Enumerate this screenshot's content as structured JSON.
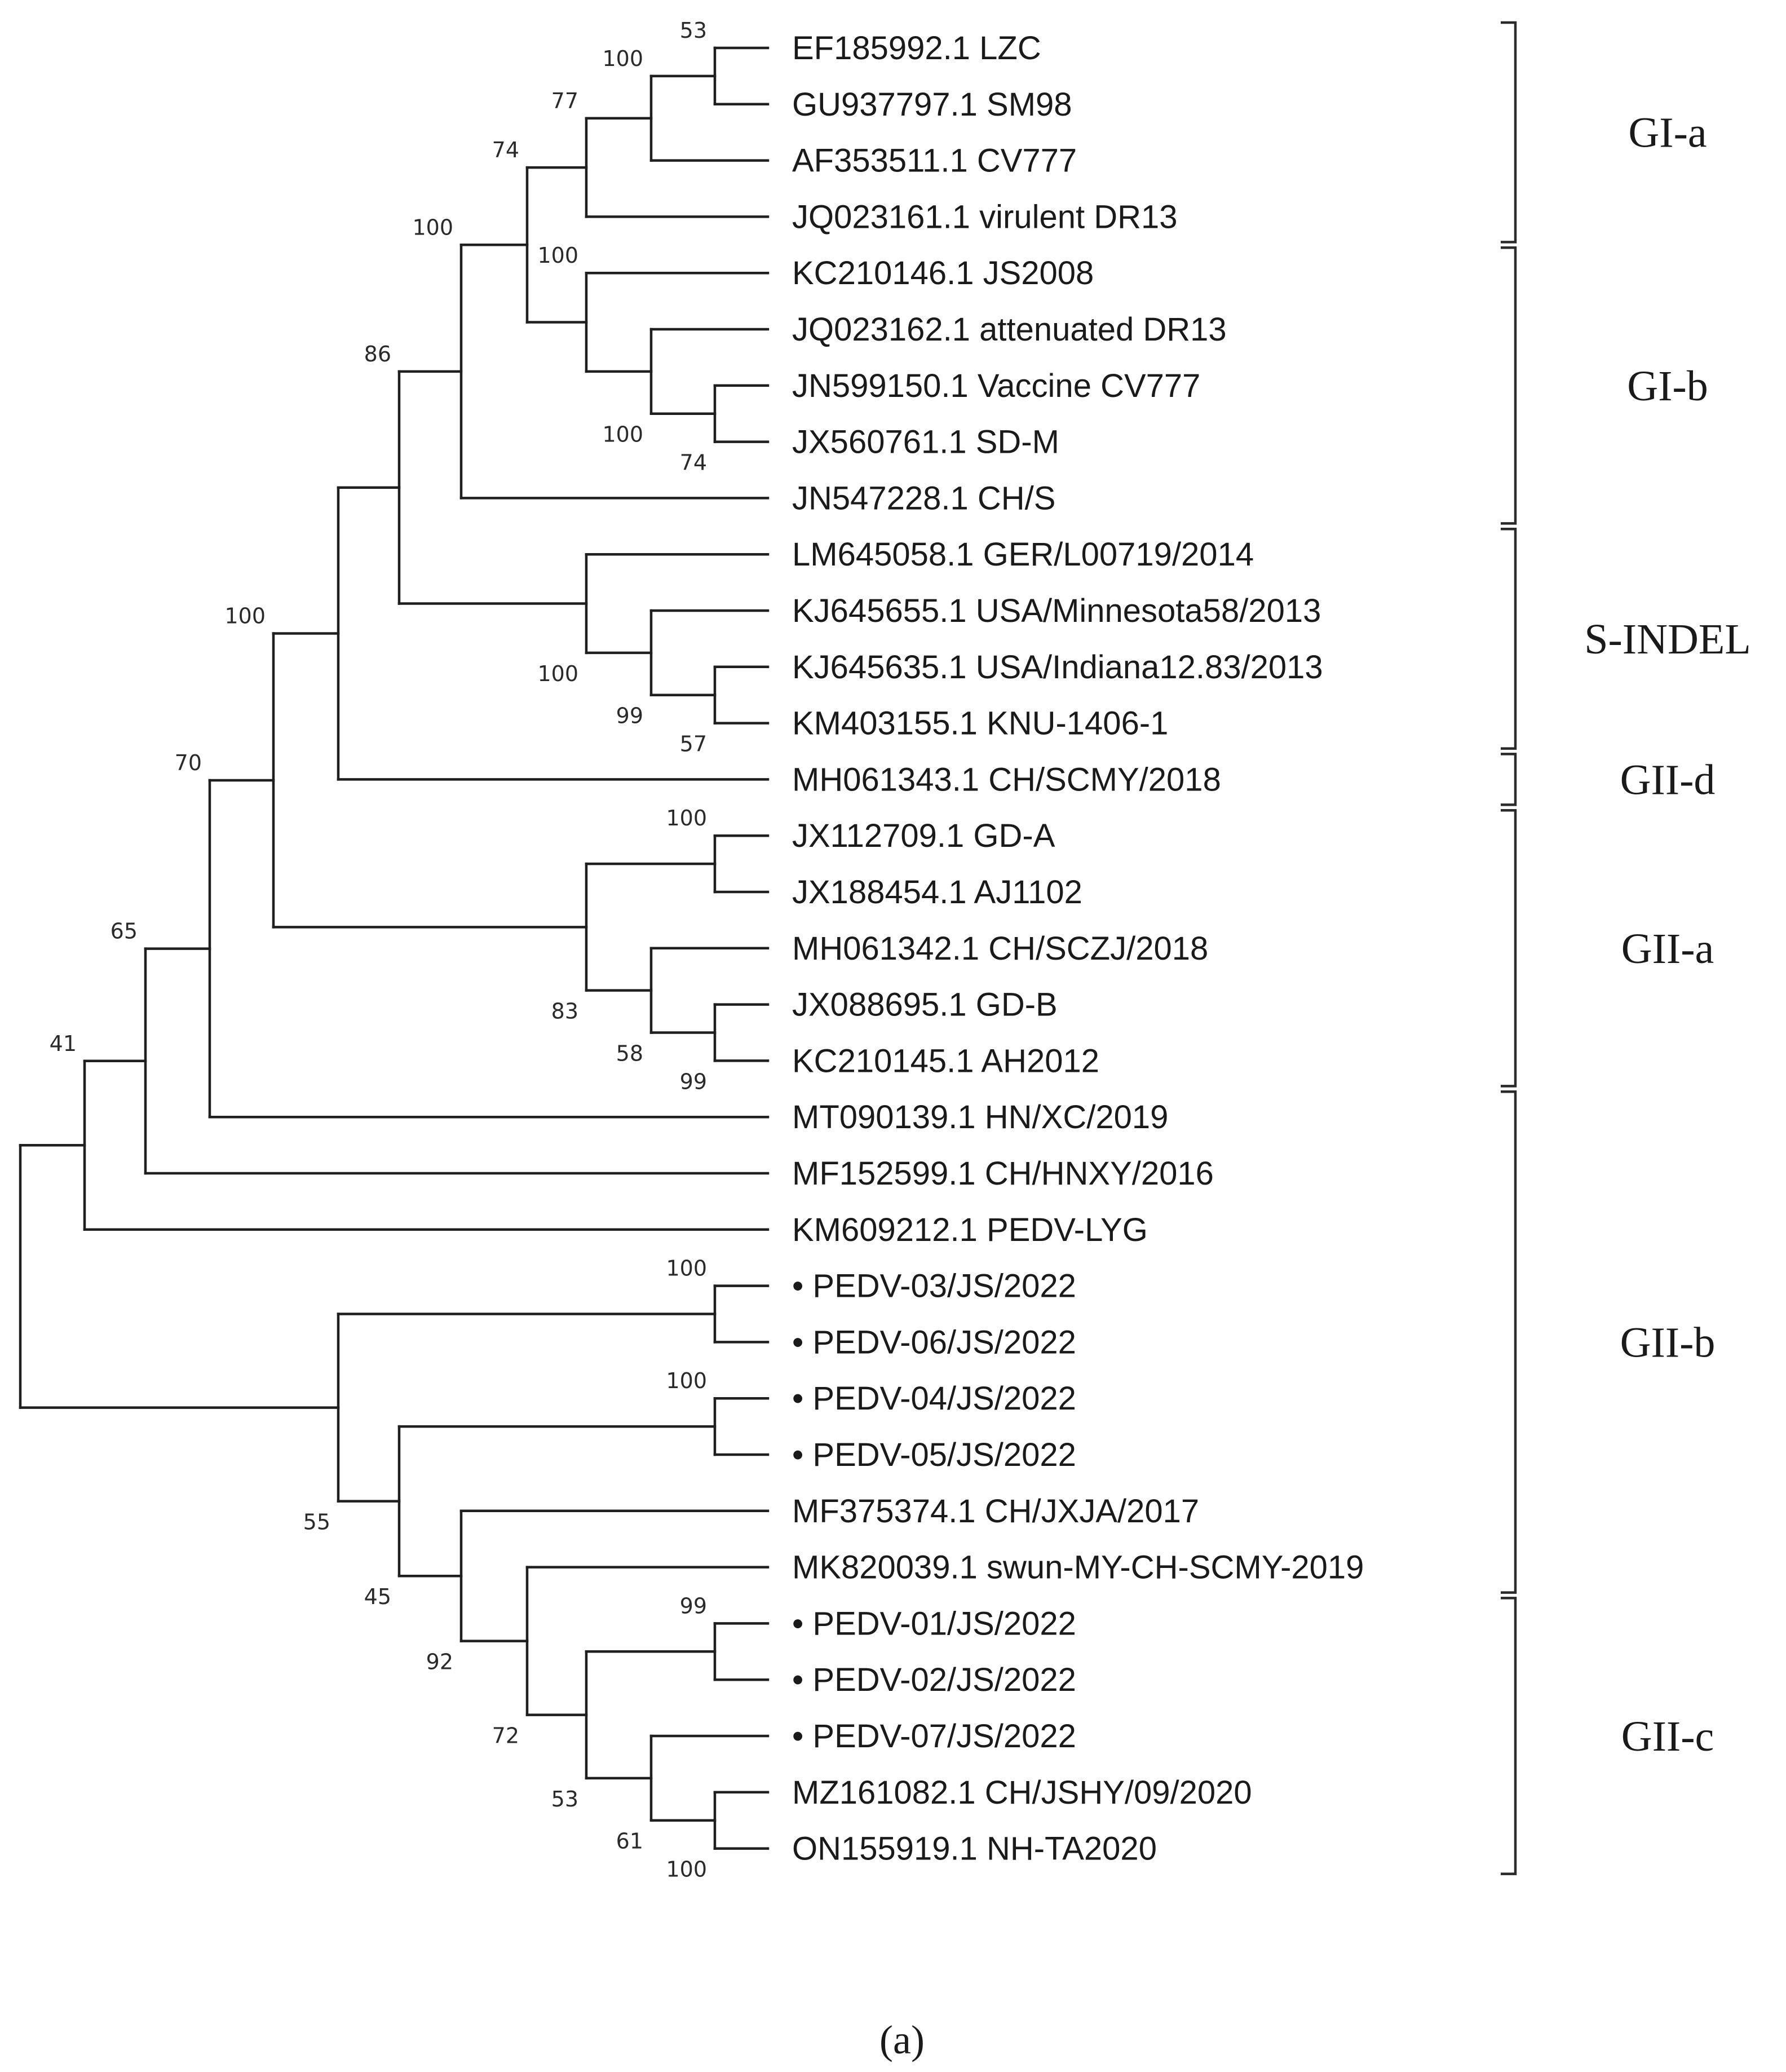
{
  "figure": {
    "caption": "(a)",
    "tree": {
      "taxa": [
        {
          "label": "EF185992.1 LZC",
          "marked": false
        },
        {
          "label": "GU937797.1 SM98",
          "marked": false
        },
        {
          "label": "AF353511.1 CV777",
          "marked": false
        },
        {
          "label": "JQ023161.1 virulent DR13",
          "marked": false
        },
        {
          "label": "KC210146.1 JS2008",
          "marked": false
        },
        {
          "label": "JQ023162.1 attenuated DR13",
          "marked": false
        },
        {
          "label": "JN599150.1 Vaccine CV777",
          "marked": false
        },
        {
          "label": "JX560761.1 SD-M",
          "marked": false
        },
        {
          "label": "JN547228.1 CH/S",
          "marked": false
        },
        {
          "label": "LM645058.1 GER/L00719/2014",
          "marked": false
        },
        {
          "label": "KJ645655.1 USA/Minnesota58/2013",
          "marked": false
        },
        {
          "label": "KJ645635.1 USA/Indiana12.83/2013",
          "marked": false
        },
        {
          "label": "KM403155.1 KNU-1406-1",
          "marked": false
        },
        {
          "label": "MH061343.1 CH/SCMY/2018",
          "marked": false
        },
        {
          "label": "JX112709.1 GD-A",
          "marked": false
        },
        {
          "label": "JX188454.1 AJ1102",
          "marked": false
        },
        {
          "label": "MH061342.1 CH/SCZJ/2018",
          "marked": false
        },
        {
          "label": "JX088695.1 GD-B",
          "marked": false
        },
        {
          "label": "KC210145.1 AH2012",
          "marked": false
        },
        {
          "label": "MT090139.1 HN/XC/2019",
          "marked": false
        },
        {
          "label": "MF152599.1 CH/HNXY/2016",
          "marked": false
        },
        {
          "label": "KM609212.1 PEDV-LYG",
          "marked": false
        },
        {
          "label": "PEDV-03/JS/2022",
          "marked": true
        },
        {
          "label": "PEDV-06/JS/2022",
          "marked": true
        },
        {
          "label": "PEDV-04/JS/2022",
          "marked": true
        },
        {
          "label": "PEDV-05/JS/2022",
          "marked": true
        },
        {
          "label": "MF375374.1 CH/JXJA/2017",
          "marked": false
        },
        {
          "label": "MK820039.1 swun-MY-CH-SCMY-2019",
          "marked": false
        },
        {
          "label": "PEDV-01/JS/2022",
          "marked": true
        },
        {
          "label": "PEDV-02/JS/2022",
          "marked": true
        },
        {
          "label": "PEDV-07/JS/2022",
          "marked": true
        },
        {
          "label": "MZ161082.1 CH/JSHY/09/2020",
          "marked": false
        },
        {
          "label": "ON155919.1 NH-TA2020",
          "marked": false
        }
      ],
      "marker_glyph": "•",
      "internal_nodes": [
        {
          "id": "n_lzc_sm98",
          "children": [
            0,
            1
          ],
          "support": "53"
        },
        {
          "id": "n_a1",
          "children": [
            "n_lzc_sm98",
            2
          ],
          "support": "100"
        },
        {
          "id": "n_ga",
          "children": [
            "n_a1",
            3
          ],
          "support": "77"
        },
        {
          "id": "n_sdm",
          "children": [
            6,
            7
          ],
          "support": "74"
        },
        {
          "id": "n_b2",
          "children": [
            5,
            "n_sdm"
          ],
          "support": "100"
        },
        {
          "id": "n_gb",
          "children": [
            4,
            "n_b2"
          ],
          "support": "100"
        },
        {
          "id": "n_gab",
          "children": [
            "n_ga",
            "n_gb"
          ],
          "support": "74"
        },
        {
          "id": "n_gi",
          "children": [
            "n_gab",
            8
          ],
          "support": "100"
        },
        {
          "id": "n_s3",
          "children": [
            11,
            12
          ],
          "support": "57"
        },
        {
          "id": "n_s2",
          "children": [
            10,
            "n_s3"
          ],
          "support": "99"
        },
        {
          "id": "n_s1",
          "children": [
            9,
            "n_s2"
          ],
          "support": "100"
        },
        {
          "id": "n_gis",
          "children": [
            "n_gi",
            "n_s1"
          ],
          "support": "86"
        },
        {
          "id": "n_gd",
          "children": [
            "n_gis",
            13
          ],
          "support": ""
        },
        {
          "id": "n_a_gd",
          "children": [
            14,
            15
          ],
          "support": "100"
        },
        {
          "id": "n_a_gdb",
          "children": [
            17,
            18
          ],
          "support": "99"
        },
        {
          "id": "n_a_b",
          "children": [
            16,
            "n_a_gdb"
          ],
          "support": "58"
        },
        {
          "id": "n_gIIa",
          "children": [
            "n_a_gd",
            "n_a_b"
          ],
          "support": "83"
        },
        {
          "id": "n_100",
          "children": [
            "n_gd",
            "n_gIIa"
          ],
          "support": "100"
        },
        {
          "id": "n_70",
          "children": [
            "n_100",
            19
          ],
          "support": "70"
        },
        {
          "id": "n_65",
          "children": [
            "n_70",
            20
          ],
          "support": "65"
        },
        {
          "id": "n_41",
          "children": [
            "n_65",
            21
          ],
          "support": "41"
        },
        {
          "id": "n_p36",
          "children": [
            22,
            23
          ],
          "support": "100"
        },
        {
          "id": "n_p45",
          "children": [
            24,
            25
          ],
          "support": "100"
        },
        {
          "id": "n_c12",
          "children": [
            28,
            29
          ],
          "support": "99"
        },
        {
          "id": "n_jshy",
          "children": [
            31,
            32
          ],
          "support": "100"
        },
        {
          "id": "n_61",
          "children": [
            30,
            "n_jshy"
          ],
          "support": "61"
        },
        {
          "id": "n_53",
          "children": [
            "n_c12",
            "n_61"
          ],
          "support": "53"
        },
        {
          "id": "n_72",
          "children": [
            27,
            "n_53"
          ],
          "support": "72"
        },
        {
          "id": "n_92",
          "children": [
            26,
            "n_72"
          ],
          "support": "92"
        },
        {
          "id": "n_45",
          "children": [
            "n_p45",
            "n_92"
          ],
          "support": "45"
        },
        {
          "id": "n_55",
          "children": [
            "n_p36",
            "n_45"
          ],
          "support": "55"
        },
        {
          "id": "root",
          "children": [
            "n_41",
            "n_55"
          ],
          "support": ""
        }
      ]
    },
    "clades": [
      {
        "name": "GI-a",
        "from_taxon": 0,
        "to_taxon": 3
      },
      {
        "name": "GI-b",
        "from_taxon": 4,
        "to_taxon": 8
      },
      {
        "name": "S-INDEL",
        "from_taxon": 9,
        "to_taxon": 12
      },
      {
        "name": "GII-d",
        "from_taxon": 13,
        "to_taxon": 13
      },
      {
        "name": "GII-a",
        "from_taxon": 14,
        "to_taxon": 18
      },
      {
        "name": "GII-b",
        "from_taxon": 19,
        "to_taxon": 27
      },
      {
        "name": "GII-c",
        "from_taxon": 28,
        "to_taxon": 32
      }
    ]
  }
}
